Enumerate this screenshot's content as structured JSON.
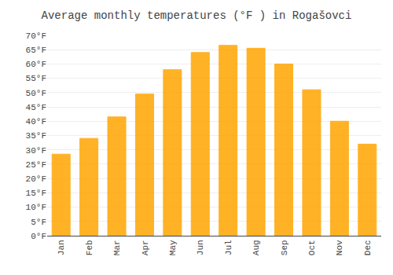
{
  "chart_data": {
    "type": "bar",
    "title": "Average monthly temperatures (°F ) in Rogašovci",
    "categories": [
      "Jan",
      "Feb",
      "Mar",
      "Apr",
      "May",
      "Jun",
      "Jul",
      "Aug",
      "Sep",
      "Oct",
      "Nov",
      "Dec"
    ],
    "values": [
      28.5,
      34.0,
      41.5,
      49.5,
      58.0,
      64.0,
      66.5,
      65.5,
      60.0,
      51.0,
      40.0,
      32.0
    ],
    "color": "#FFA500",
    "ylim": [
      0,
      70
    ],
    "yticks": [
      {
        "value": 0,
        "label": "0°F"
      },
      {
        "value": 5,
        "label": "5°F"
      },
      {
        "value": 10,
        "label": "10°F"
      },
      {
        "value": 15,
        "label": "15°F"
      },
      {
        "value": 20,
        "label": "20°F"
      },
      {
        "value": 25,
        "label": "25°F"
      },
      {
        "value": 30,
        "label": "30°F"
      },
      {
        "value": 35,
        "label": "35°F"
      },
      {
        "value": 40,
        "label": "40°F"
      },
      {
        "value": 45,
        "label": "45°F"
      },
      {
        "value": 50,
        "label": "50°F"
      },
      {
        "value": 55,
        "label": "55°F"
      },
      {
        "value": 60,
        "label": "60°F"
      },
      {
        "value": 65,
        "label": "65°F"
      },
      {
        "value": 70,
        "label": "70°F"
      }
    ],
    "grid": true
  }
}
